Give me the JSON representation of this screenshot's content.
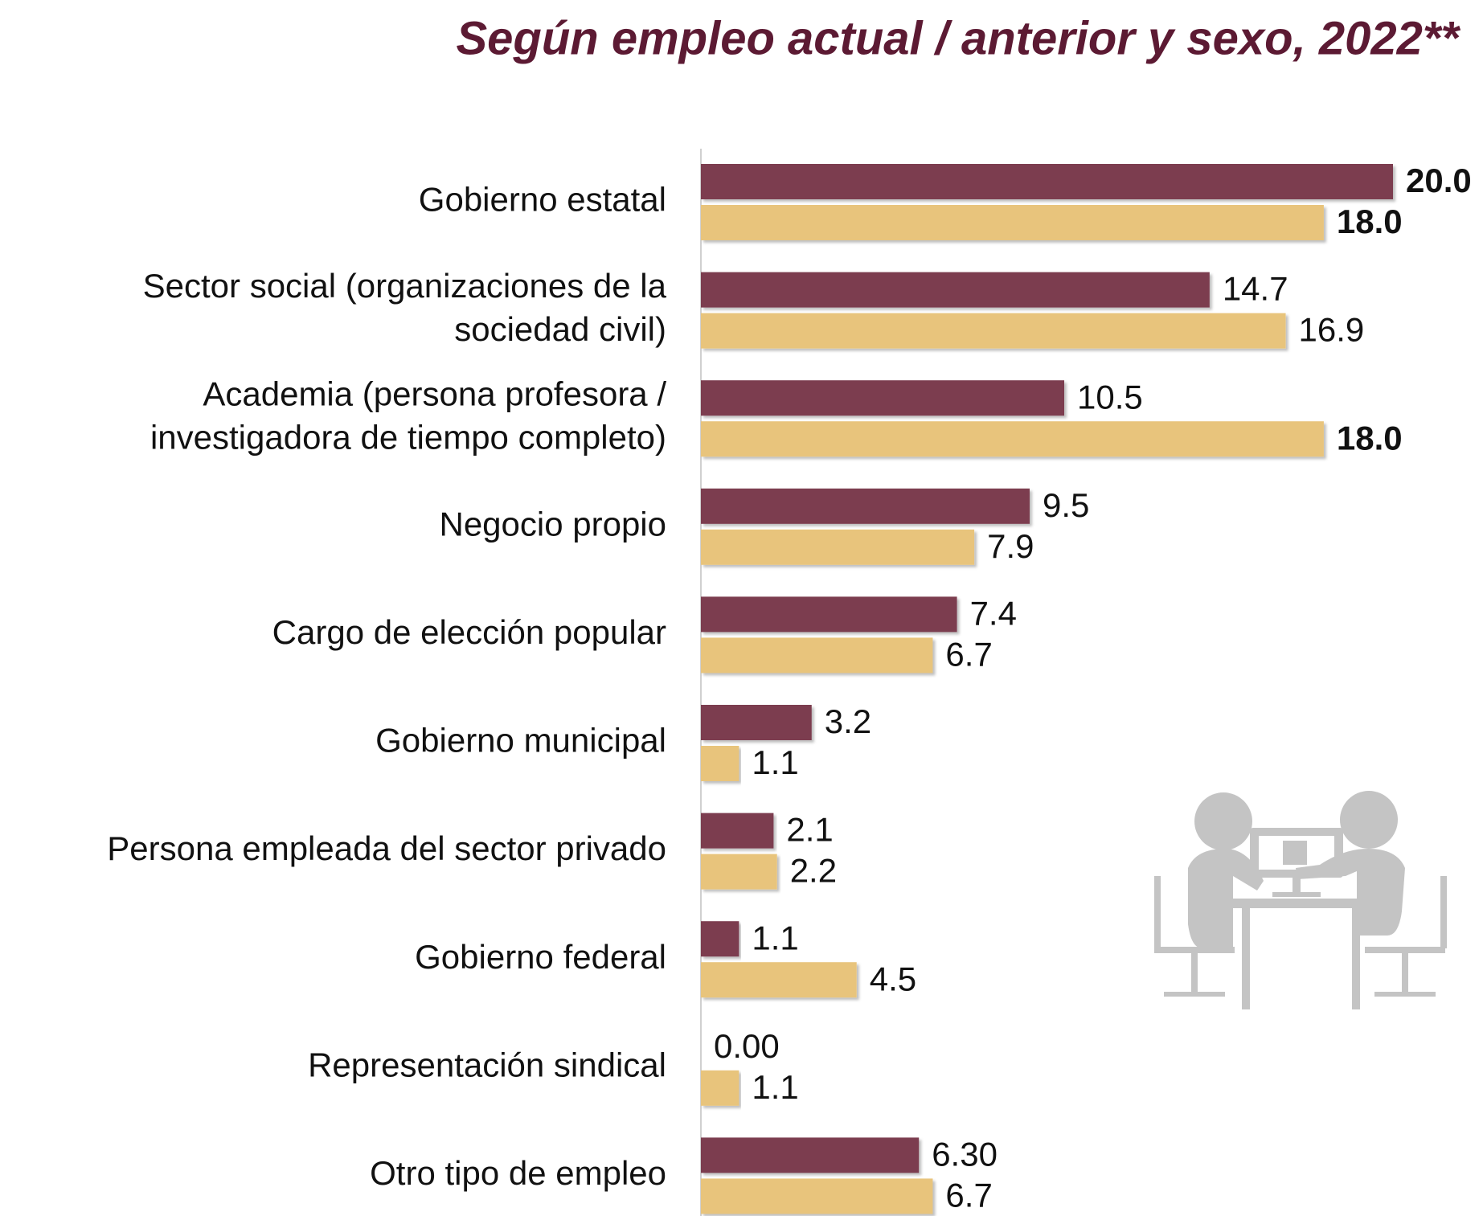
{
  "chart_data": {
    "type": "bar",
    "orientation": "horizontal",
    "title": "Según empleo actual / anterior y sexo, 2022**",
    "categories": [
      "Gobierno estatal",
      "Sector social (organizaciones de la\nsociedad civil)",
      "Academia (persona profesora /\ninvestigadora de tiempo completo)",
      "Negocio propio",
      "Cargo de elección popular",
      "Gobierno municipal",
      "Persona empleada del sector privado",
      "Gobierno federal",
      "Representación sindical",
      "Otro tipo de empleo"
    ],
    "series": [
      {
        "color": "#7b3d50",
        "values": [
          20,
          14.7,
          10.5,
          9.5,
          7.4,
          3.2,
          2.1,
          1.1,
          0,
          6.3
        ],
        "value_labels": [
          "20.0",
          "14.7",
          "10.5",
          "9.5",
          "7.4",
          "3.2",
          "2.1",
          "1.1",
          "0.00",
          "6.30"
        ]
      },
      {
        "color": "#e8c47c",
        "values": [
          18,
          16.9,
          18,
          7.9,
          6.7,
          1.1,
          2.2,
          4.5,
          1.1,
          6.7
        ],
        "value_labels": [
          "18.0",
          "16.9",
          "18.0",
          "7.9",
          "6.7",
          "1.1",
          "2.2",
          "4.5",
          "1.1",
          "6.7"
        ]
      }
    ]
  }
}
